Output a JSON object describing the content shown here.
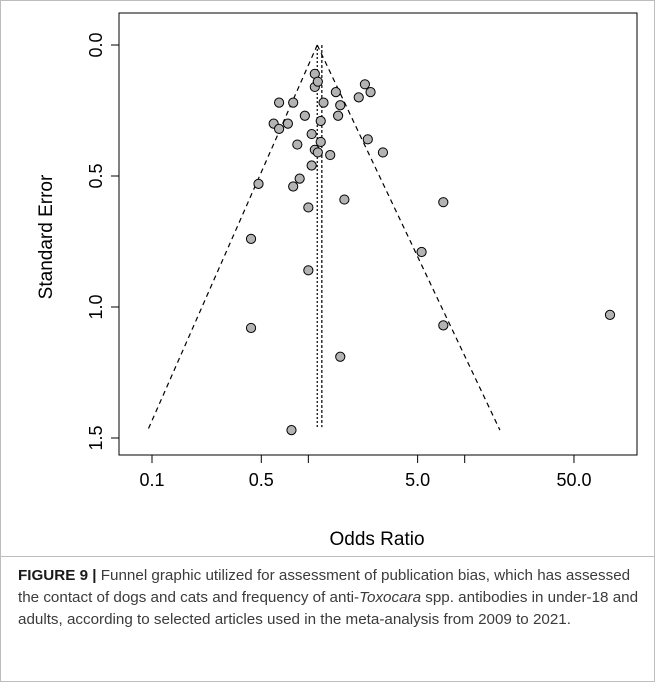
{
  "figure": {
    "label": "FIGURE 9",
    "separator": "|",
    "caption_part1": "Funnel graphic utilized for assessment of publication bias, which has assessed the contact of dogs and cats and frequency of anti-",
    "caption_italic": "Toxocara",
    "caption_part2": " spp. antibodies in under-18 and adults, according to selected articles used in the meta-analysis from 2009 to 2021."
  },
  "chart_data": {
    "type": "scatter",
    "subtype": "funnel",
    "xlabel": "Odds Ratio",
    "ylabel": "Standard Error",
    "x_scale": "log",
    "xlim": [
      0.1,
      100
    ],
    "ylim": [
      1.5,
      0.0
    ],
    "y_inverted": true,
    "x_ticks": [
      {
        "value": 0.1,
        "label": "0.1"
      },
      {
        "value": 0.5,
        "label": "0.5"
      },
      {
        "value": 5.0,
        "label": "5.0"
      },
      {
        "value": 50.0,
        "label": "50.0"
      }
    ],
    "x_minor_ticks": [
      1,
      10
    ],
    "y_ticks": [
      {
        "value": 0.0,
        "label": "0.0"
      },
      {
        "value": 0.5,
        "label": "0.5"
      },
      {
        "value": 1.0,
        "label": "1.0"
      },
      {
        "value": 1.5,
        "label": "1.5"
      }
    ],
    "pooled_or": 1.14,
    "pooled_or_solid": 1.22,
    "funnel_apex_se": 0.0,
    "funnel_base_se": 1.47,
    "funnel_left_or_at_base": 0.094,
    "funnel_right_or_at_base": 16.8,
    "points_color": "#b3b3b3",
    "points": [
      {
        "or": 1.1,
        "se": 0.11
      },
      {
        "or": 1.1,
        "se": 0.16
      },
      {
        "or": 1.15,
        "se": 0.14
      },
      {
        "or": 2.3,
        "se": 0.15
      },
      {
        "or": 2.5,
        "se": 0.18
      },
      {
        "or": 2.1,
        "se": 0.2
      },
      {
        "or": 1.5,
        "se": 0.18
      },
      {
        "or": 1.25,
        "se": 0.22
      },
      {
        "or": 1.6,
        "se": 0.23
      },
      {
        "or": 1.55,
        "se": 0.27
      },
      {
        "or": 1.2,
        "se": 0.29
      },
      {
        "or": 0.65,
        "se": 0.22
      },
      {
        "or": 0.8,
        "se": 0.22
      },
      {
        "or": 0.95,
        "se": 0.27
      },
      {
        "or": 0.74,
        "se": 0.3
      },
      {
        "or": 0.6,
        "se": 0.3
      },
      {
        "or": 0.65,
        "se": 0.32
      },
      {
        "or": 1.05,
        "se": 0.34
      },
      {
        "or": 1.2,
        "se": 0.37
      },
      {
        "or": 2.4,
        "se": 0.36
      },
      {
        "or": 3.0,
        "se": 0.41
      },
      {
        "or": 0.85,
        "se": 0.38
      },
      {
        "or": 1.1,
        "se": 0.4
      },
      {
        "or": 1.15,
        "se": 0.41
      },
      {
        "or": 1.38,
        "se": 0.42
      },
      {
        "or": 1.05,
        "se": 0.46
      },
      {
        "or": 0.88,
        "se": 0.51
      },
      {
        "or": 0.8,
        "se": 0.54
      },
      {
        "or": 0.48,
        "se": 0.53
      },
      {
        "or": 1.7,
        "se": 0.59
      },
      {
        "or": 7.3,
        "se": 0.6
      },
      {
        "or": 1.0,
        "se": 0.62
      },
      {
        "or": 0.43,
        "se": 0.74
      },
      {
        "or": 5.3,
        "se": 0.79
      },
      {
        "or": 1.0,
        "se": 0.86
      },
      {
        "or": 85.0,
        "se": 1.03
      },
      {
        "or": 0.43,
        "se": 1.08
      },
      {
        "or": 7.3,
        "se": 1.07
      },
      {
        "or": 1.6,
        "se": 1.19
      },
      {
        "or": 0.78,
        "se": 1.47
      }
    ]
  }
}
